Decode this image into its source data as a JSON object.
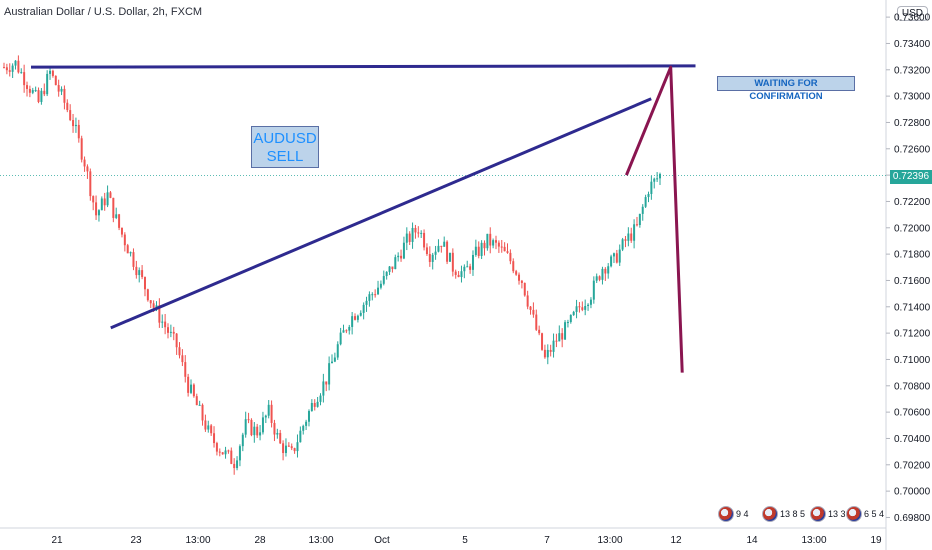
{
  "header": {
    "symbol_title": "Australian Dollar / U.S. Dollar, 2h, FXCM",
    "currency": "USD"
  },
  "annotations": {
    "sell_line1": "AUDUSD",
    "sell_line2": "SELL",
    "waiting": "WAITING FOR CONFIRMATION"
  },
  "current_price": "0.72396",
  "events": [
    {
      "label": "9 4"
    },
    {
      "label": "13 8 5"
    },
    {
      "label": "13 3"
    },
    {
      "label": "6 5 4"
    }
  ],
  "chart_data": {
    "type": "candlestick",
    "title": "Australian Dollar / U.S. Dollar, 2h, FXCM",
    "y_ticks": [
      "0.69800",
      "0.70000",
      "0.70200",
      "0.70400",
      "0.70600",
      "0.70800",
      "0.71000",
      "0.71200",
      "0.71400",
      "0.71600",
      "0.71800",
      "0.72000",
      "0.72200",
      "0.72400",
      "0.72600",
      "0.72800",
      "0.73000",
      "0.73200",
      "0.73400",
      "0.73600"
    ],
    "ylim": [
      0.6972,
      0.7373
    ],
    "x_ticks": [
      "21",
      "23",
      "13:00",
      "28",
      "13:00",
      "Oct",
      "5",
      "7",
      "13:00",
      "12",
      "14",
      "13:00",
      "19"
    ],
    "close_series": [
      0.7322,
      0.7325,
      0.731,
      0.7295,
      0.7318,
      0.73,
      0.728,
      0.725,
      0.721,
      0.7225,
      0.72,
      0.718,
      0.716,
      0.714,
      0.7125,
      0.711,
      0.708,
      0.706,
      0.704,
      0.703,
      0.7022,
      0.705,
      0.7045,
      0.706,
      0.7035,
      0.7028,
      0.705,
      0.707,
      0.7085,
      0.711,
      0.713,
      0.714,
      0.715,
      0.716,
      0.7175,
      0.719,
      0.72,
      0.718,
      0.719,
      0.717,
      0.7165,
      0.718,
      0.719,
      0.7185,
      0.7175,
      0.716,
      0.713,
      0.71,
      0.7115,
      0.7125,
      0.714,
      0.715,
      0.717,
      0.7175,
      0.719,
      0.72,
      0.723,
      0.724
    ],
    "lines": [
      {
        "name": "resistance",
        "points": [
          [
            0.035,
            0.7322
          ],
          [
            0.785,
            0.7323
          ]
        ]
      },
      {
        "name": "trend",
        "points": [
          [
            0.125,
            0.7124
          ],
          [
            0.735,
            0.7298
          ]
        ]
      },
      {
        "name": "projection",
        "points": [
          [
            0.707,
            0.724
          ],
          [
            0.757,
            0.7322
          ],
          [
            0.77,
            0.709
          ]
        ]
      }
    ]
  }
}
